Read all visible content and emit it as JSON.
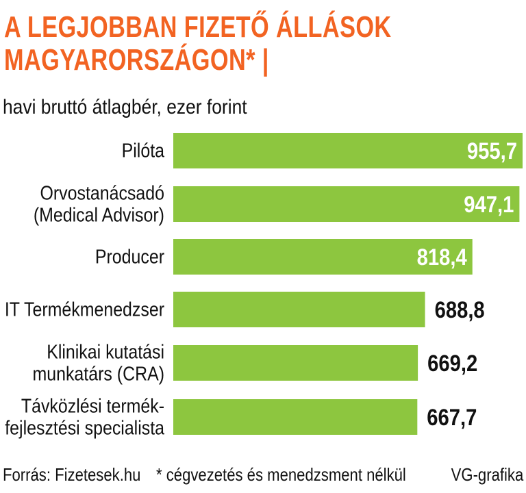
{
  "title": {
    "line1": "A LEGJOBBAN FIZETŐ ÁLLÁSOK",
    "line2": "MAGYARORSZÁGON* |"
  },
  "subtitle": "havi bruttó átlagbér, ezer forint",
  "colors": {
    "title": "#f26322",
    "bar": "#8dc63f",
    "label_inside": "#ffffff",
    "label_outside": "#111111"
  },
  "chart_data": {
    "type": "bar",
    "orientation": "horizontal",
    "categories": [
      [
        "Pilóta"
      ],
      [
        "Orvostanácsadó",
        "(Medical Advisor)"
      ],
      [
        "Producer"
      ],
      [
        "IT Termékmenedzser"
      ],
      [
        "Klinikai kutatási",
        "munkatárs (CRA)"
      ],
      [
        "Távközlési termék-",
        "fejlesztési specialista"
      ]
    ],
    "values": [
      955.7,
      947.1,
      818.4,
      688.8,
      669.2,
      667.7
    ],
    "value_labels": [
      "955,7",
      "947,1",
      "818,4",
      "688,8",
      "669,2",
      "667,7"
    ],
    "label_inside": [
      true,
      true,
      true,
      false,
      false,
      false
    ],
    "xlim": [
      0,
      955.7
    ]
  },
  "footer": {
    "source": "Forrás: Fizetesek.hu",
    "note": "* cégvezetés és menedzsment nélkül",
    "credit": "VG-grafika"
  }
}
